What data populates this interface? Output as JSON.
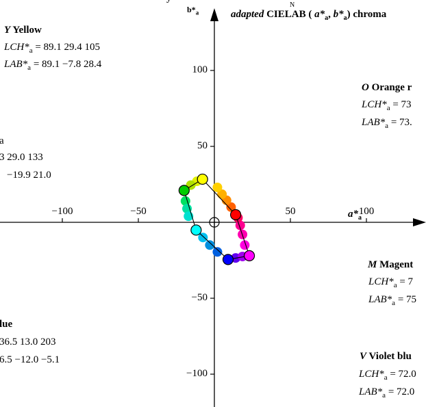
{
  "chart_data": {
    "type": "scatter",
    "title_prefix": "adapted",
    "title_rest": "CIELAB (",
    "title_tail": ") chroma",
    "title_a": "a*",
    "title_a_sub": "a",
    "title_b": "b*",
    "title_b_sub": "a",
    "top_left_fragment": "y",
    "top_super_fragment": "N",
    "xlabel": "a*",
    "xlabel_sub": "a",
    "ylabel": "b*",
    "ylabel_sub": "a",
    "x_ticks": [
      "−100",
      "−50",
      "50",
      "100"
    ],
    "x_tick_values": [
      -100,
      -50,
      50,
      100
    ],
    "y_ticks": [
      "100",
      "50",
      "−50",
      "−100"
    ],
    "y_tick_values": [
      100,
      50,
      -50,
      -100
    ],
    "xlim": [
      -125,
      135
    ],
    "ylim": [
      -114,
      128
    ],
    "grid": false,
    "hue_sequence": [
      {
        "a": 14.0,
        "b": 5.0,
        "color": "#ff0000"
      },
      {
        "a": 11.0,
        "b": 10.0,
        "color": "#ff6000"
      },
      {
        "a": 8.0,
        "b": 14.5,
        "color": "#ff8c00"
      },
      {
        "a": 5.0,
        "b": 18.5,
        "color": "#ffb000"
      },
      {
        "a": 2.0,
        "b": 23.0,
        "color": "#ffd000"
      },
      {
        "a": -7.8,
        "b": 28.4,
        "color": "#ffff00"
      },
      {
        "a": -11.5,
        "b": 27.0,
        "color": "#e0f000"
      },
      {
        "a": -15.5,
        "b": 24.5,
        "color": "#b0e000"
      },
      {
        "a": -19.9,
        "b": 21.0,
        "color": "#00d000"
      },
      {
        "a": -19.0,
        "b": 14.0,
        "color": "#00e060"
      },
      {
        "a": -18.0,
        "b": 9.0,
        "color": "#00e0a0"
      },
      {
        "a": -17.0,
        "b": 4.0,
        "color": "#00e0d0"
      },
      {
        "a": -12.0,
        "b": -5.1,
        "color": "#00ffff"
      },
      {
        "a": -7.5,
        "b": -10.0,
        "color": "#00c0f0"
      },
      {
        "a": -3.0,
        "b": -15.0,
        "color": "#0090e0"
      },
      {
        "a": 2.0,
        "b": -19.5,
        "color": "#0060e0"
      },
      {
        "a": 9.0,
        "b": -24.5,
        "color": "#0000ff"
      },
      {
        "a": 14.0,
        "b": -23.5,
        "color": "#6000f0"
      },
      {
        "a": 18.5,
        "b": -22.5,
        "color": "#a000f0"
      },
      {
        "a": 23.0,
        "b": -22.0,
        "color": "#ff00ff"
      },
      {
        "a": 20.0,
        "b": -15.0,
        "color": "#ff00e0"
      },
      {
        "a": 18.5,
        "b": -8.0,
        "color": "#ff00b0"
      },
      {
        "a": 17.0,
        "b": -2.0,
        "color": "#ff0090"
      },
      {
        "a": 15.5,
        "b": 3.0,
        "color": "#ff0060"
      }
    ],
    "elementary_points": [
      {
        "key": "O",
        "a": 14.0,
        "b": 5.0,
        "color": "#ff0000"
      },
      {
        "key": "Y",
        "a": -7.8,
        "b": 28.4,
        "color": "#ffff00"
      },
      {
        "key": "L",
        "a": -19.9,
        "b": 21.0,
        "color": "#00cc00"
      },
      {
        "key": "B",
        "a": -12.0,
        "b": -5.1,
        "color": "#00ffff"
      },
      {
        "key": "V",
        "a": 9.0,
        "b": -24.5,
        "color": "#0000ff"
      },
      {
        "key": "M",
        "a": 23.0,
        "b": -22.0,
        "color": "#ff00ff"
      }
    ],
    "polygon_order": [
      "O",
      "Y",
      "L",
      "B",
      "V",
      "M"
    ],
    "annotations": {
      "yellow": {
        "letter": "Y",
        "name": "Yellow",
        "lch_label": "LCH*",
        "lch_sub": "a",
        "lch_values": " = 89.1  29.4  105",
        "lab_label": "LAB*",
        "lab_sub": "a",
        "lab_values": " = 89.1  −7.8  28.4"
      },
      "orange": {
        "letter": "O",
        "name": "Orange r",
        "lch_label": "LCH*",
        "lch_sub": "a",
        "lch_values": " = 73",
        "lab_label": "LAB*",
        "lab_sub": "a",
        "lab_values": " = 73."
      },
      "leaf": {
        "frag1": "a",
        "frag2": "3  29.0  133",
        "frag3": "−19.9  21.0"
      },
      "magenta": {
        "letter": "M",
        "name": "Magent",
        "lch_label": "LCH*",
        "lch_sub": "a",
        "lch_values": " = 7",
        "lab_label": "LAB*",
        "lab_sub": "a",
        "lab_values": " = 75"
      },
      "blue": {
        "name": "lue",
        "frag1": "36.5  13.0  203",
        "frag2": "6.5  −12.0  −5.1"
      },
      "violet": {
        "letter": "V",
        "name": "Violet blu",
        "lch_label": "LCH*",
        "lch_sub": "a",
        "lch_values": " = 72.0",
        "lab_label": "LAB*",
        "lab_sub": "a",
        "lab_values": " = 72.0"
      }
    }
  }
}
